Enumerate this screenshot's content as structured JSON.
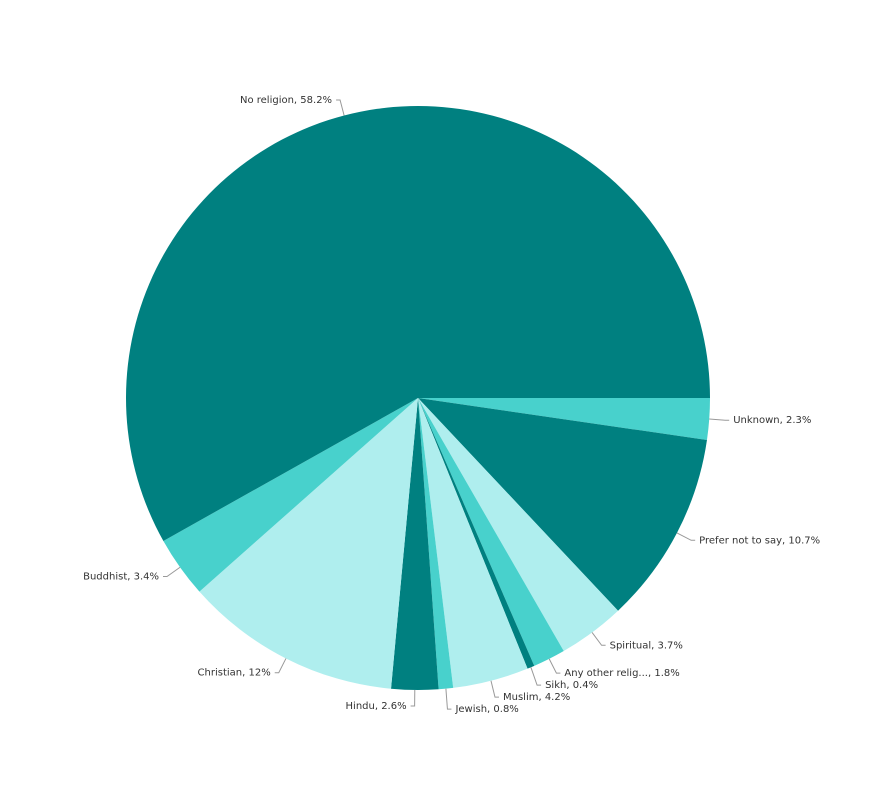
{
  "chart_data": {
    "type": "pie",
    "labels": [
      "Unknown, 2.3%",
      "Prefer not to say, 10.7%",
      "Spiritual, 3.7%",
      "Any other relig..., 1.8%",
      "Sikh, 0.4%",
      "Muslim, 4.2%",
      "Jewish, 0.8%",
      "Hindu, 2.6%",
      "Christian, 12%",
      "Buddhist, 3.4%",
      "No religion, 58.2%"
    ],
    "values": [
      2.3,
      10.7,
      3.7,
      1.8,
      0.4,
      4.2,
      0.8,
      2.6,
      12,
      3.4,
      58.2
    ],
    "colors": [
      "#48d1cc",
      "#008080",
      "#afeeee",
      "#48d1cc",
      "#008080",
      "#afeeee",
      "#48d1cc",
      "#008080",
      "#afeeee",
      "#48d1cc",
      "#008080"
    ]
  }
}
